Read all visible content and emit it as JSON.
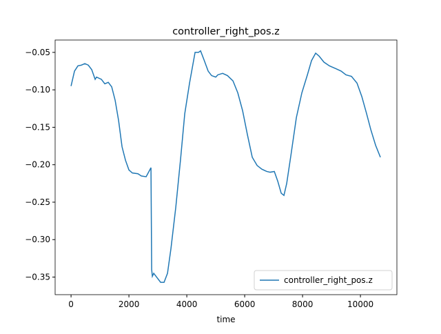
{
  "chart_data": {
    "type": "line",
    "title": "controller_right_pos.z",
    "x_label": "time",
    "x": [
      0,
      119,
      238,
      357,
      476,
      595,
      714,
      833,
      880,
      1048,
      1167,
      1286,
      1405,
      1524,
      1643,
      1762,
      1881,
      2000,
      2119,
      2310,
      2429,
      2595,
      2762,
      2786,
      2810,
      2857,
      2976,
      3095,
      3214,
      3333,
      3452,
      3619,
      3786,
      3929,
      4095,
      4286,
      4405,
      4476,
      4595,
      4738,
      4857,
      5000,
      5071,
      5238,
      5405,
      5595,
      5762,
      5929,
      6095,
      6262,
      6429,
      6595,
      6762,
      6881,
      7024,
      7143,
      7262,
      7357,
      7452,
      7595,
      7786,
      7976,
      8167,
      8310,
      8452,
      8571,
      8738,
      8929,
      9167,
      9333,
      9500,
      9690,
      9881,
      10048,
      10214,
      10357,
      10524,
      10690
    ],
    "series": [
      {
        "name": "controller_right_pos.z",
        "color": "#1f77b4",
        "values": [
          -0.095,
          -0.075,
          -0.068,
          -0.067,
          -0.065,
          -0.067,
          -0.073,
          -0.086,
          -0.083,
          -0.086,
          -0.092,
          -0.09,
          -0.096,
          -0.114,
          -0.141,
          -0.176,
          -0.194,
          -0.207,
          -0.211,
          -0.212,
          -0.215,
          -0.216,
          -0.204,
          -0.34,
          -0.349,
          -0.345,
          -0.351,
          -0.357,
          -0.357,
          -0.345,
          -0.312,
          -0.257,
          -0.192,
          -0.132,
          -0.091,
          -0.05,
          -0.05,
          -0.048,
          -0.06,
          -0.075,
          -0.081,
          -0.083,
          -0.08,
          -0.078,
          -0.081,
          -0.088,
          -0.104,
          -0.128,
          -0.16,
          -0.19,
          -0.201,
          -0.206,
          -0.209,
          -0.21,
          -0.209,
          -0.222,
          -0.238,
          -0.241,
          -0.225,
          -0.188,
          -0.137,
          -0.104,
          -0.08,
          -0.061,
          -0.051,
          -0.055,
          -0.063,
          -0.068,
          -0.072,
          -0.075,
          -0.08,
          -0.082,
          -0.091,
          -0.109,
          -0.132,
          -0.153,
          -0.174,
          -0.19
        ]
      }
    ],
    "xlim": [
      -550,
      11260
    ],
    "ylim": [
      -0.3735,
      -0.0335
    ],
    "xticks": [
      0,
      2000,
      4000,
      6000,
      8000,
      10000
    ],
    "yticks": [
      {
        "value": -0.35,
        "label": "−0.35"
      },
      {
        "value": -0.3,
        "label": "−0.30"
      },
      {
        "value": -0.25,
        "label": "−0.25"
      },
      {
        "value": -0.2,
        "label": "−0.20"
      },
      {
        "value": -0.15,
        "label": "−0.15"
      },
      {
        "value": -0.1,
        "label": "−0.10"
      },
      {
        "value": -0.05,
        "label": "−0.05"
      }
    ],
    "legend": "lower right"
  }
}
